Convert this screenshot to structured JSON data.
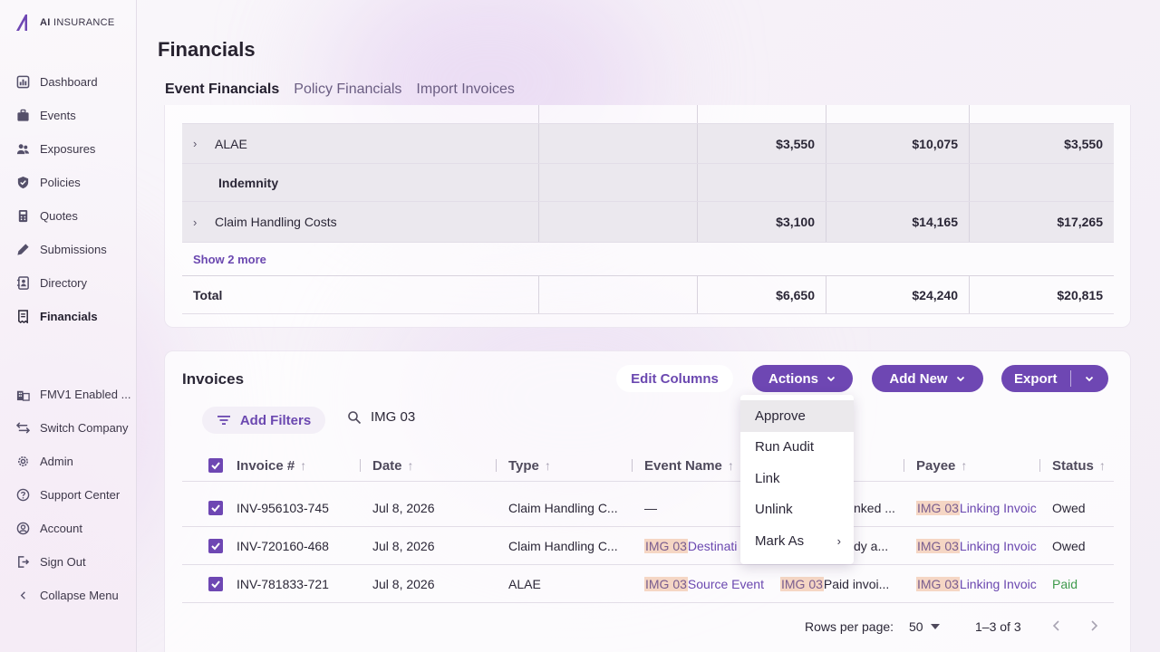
{
  "brand": {
    "name_bold": "AI",
    "name_rest": " INSURANCE"
  },
  "sidebar": {
    "items": [
      {
        "label": "Dashboard",
        "icon": "dashboard-icon"
      },
      {
        "label": "Events",
        "icon": "briefcase-icon"
      },
      {
        "label": "Exposures",
        "icon": "people-icon"
      },
      {
        "label": "Policies",
        "icon": "shield-icon"
      },
      {
        "label": "Quotes",
        "icon": "calculator-icon"
      },
      {
        "label": "Submissions",
        "icon": "pen-icon"
      },
      {
        "label": "Directory",
        "icon": "contacts-icon"
      },
      {
        "label": "Financials",
        "icon": "receipt-icon",
        "active": true
      }
    ],
    "bottom_items": [
      {
        "label": "FMV1 Enabled ...",
        "icon": "building-icon"
      },
      {
        "label": "Switch Company",
        "icon": "switch-icon"
      },
      {
        "label": "Admin",
        "icon": "gear-icon"
      },
      {
        "label": "Support Center",
        "icon": "help-icon"
      },
      {
        "label": "Account",
        "icon": "account-icon"
      },
      {
        "label": "Sign Out",
        "icon": "signout-icon"
      },
      {
        "label": "Collapse Menu",
        "icon": "chevron-left-icon"
      }
    ]
  },
  "page": {
    "title": "Financials",
    "tabs": [
      "Event Financials",
      "Policy Financials",
      "Import Invoices"
    ]
  },
  "financials": {
    "rows": [
      {
        "label": "ALAE",
        "expandable": true,
        "c3": "$3,550",
        "c4": "$10,075",
        "c5": "$3,550"
      },
      {
        "label": "Indemnity",
        "expandable": false,
        "c3": "",
        "c4": "",
        "c5": ""
      },
      {
        "label": "Claim Handling Costs",
        "expandable": true,
        "c3": "$3,100",
        "c4": "$14,165",
        "c5": "$17,265"
      }
    ],
    "show_more": "Show 2 more",
    "total": {
      "label": "Total",
      "c3": "$6,650",
      "c4": "$24,240",
      "c5": "$20,815"
    }
  },
  "invoices": {
    "title": "Invoices",
    "edit_columns": "Edit Columns",
    "actions": "Actions",
    "add_new": "Add New",
    "export": "Export",
    "add_filters": "Add Filters",
    "search_value": "IMG 03",
    "columns": [
      "Invoice #",
      "Date",
      "Type",
      "Event Name",
      "Payee",
      "Status"
    ],
    "rows": [
      {
        "invoice": "INV-956103-745",
        "date": "Jul 8, 2026",
        "type": "Claim Handling C...",
        "event": "—",
        "event_hl": "",
        "desc_hl": "",
        "desc": "nked ...",
        "payee_hl": "IMG 03",
        "payee": " Linking Invoic",
        "status": "Owed"
      },
      {
        "invoice": "INV-720160-468",
        "date": "Jul 8, 2026",
        "type": "Claim Handling C...",
        "event": " Destinati",
        "event_hl": "IMG 03",
        "desc_hl": "",
        "desc": "dy a...",
        "payee_hl": "IMG 03",
        "payee": " Linking Invoic",
        "status": "Owed"
      },
      {
        "invoice": "INV-781833-721",
        "date": "Jul 8, 2026",
        "type": "ALAE",
        "event": " Source Event",
        "event_hl": "IMG 03",
        "desc_hl": "IMG 03",
        "desc": " Paid invoi...",
        "payee_hl": "IMG 03",
        "payee": " Linking Invoic",
        "status": "Paid"
      }
    ],
    "rows_per_page_label": "Rows per page:",
    "rows_per_page": "50",
    "range": "1–3 of 3"
  },
  "actions_menu": {
    "items": [
      "Approve",
      "Run Audit",
      "Link",
      "Unlink",
      "Mark As"
    ]
  },
  "colors": {
    "accent": "#6e47b3",
    "highlight": "#f5d6c4",
    "paid": "#3f9a4c"
  }
}
